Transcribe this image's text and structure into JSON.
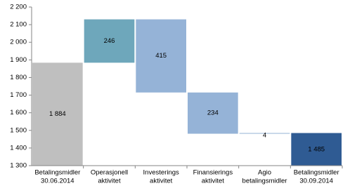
{
  "chart_data": {
    "type": "waterfall",
    "categories": [
      [
        "Betalingsmidler",
        "30.06.2014"
      ],
      [
        "Operasjonell",
        "aktivitet"
      ],
      [
        "Investerings",
        "aktivitet"
      ],
      [
        "Finansierings",
        "aktivitet"
      ],
      [
        "Agio",
        "betalingsmidler"
      ],
      [
        "Betalingsmidler",
        "30.09.2014"
      ]
    ],
    "values": [
      1884,
      246,
      -415,
      -234,
      4,
      1485
    ],
    "value_labels": [
      "1 884",
      "246",
      "415",
      "234",
      "4",
      "1 485"
    ],
    "colors": [
      "#bfbfbf",
      "#6ea7bb",
      "#95b3d7",
      "#95b3d7",
      "#95b3d7",
      "#2f5b93"
    ],
    "ylim": [
      1300,
      2200
    ],
    "yticks": [
      {
        "value": 1300,
        "label": "1 300"
      },
      {
        "value": 1400,
        "label": "1 400"
      },
      {
        "value": 1500,
        "label": "1 500"
      },
      {
        "value": 1600,
        "label": "1 600"
      },
      {
        "value": 1700,
        "label": "1 700"
      },
      {
        "value": 1800,
        "label": "1 800"
      },
      {
        "value": 1900,
        "label": "1 900"
      },
      {
        "value": 2000,
        "label": "2 000"
      },
      {
        "value": 2100,
        "label": "2 100"
      },
      {
        "value": 2200,
        "label": "2 200"
      }
    ]
  }
}
